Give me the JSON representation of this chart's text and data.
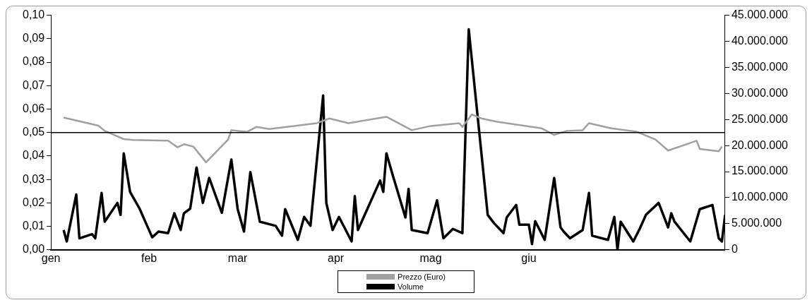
{
  "chart_data": {
    "type": "line",
    "xlim": [
      "--01-01",
      "--08-02"
    ],
    "xticks": [
      {
        "value": "--01-01",
        "label": "gen"
      },
      {
        "value": "--02-01",
        "label": "feb"
      },
      {
        "value": "--03-01",
        "label": "mar"
      },
      {
        "value": "--04-01",
        "label": "apr"
      },
      {
        "value": "--05-01",
        "label": "mag"
      },
      {
        "value": "--06-01",
        "label": "giu"
      }
    ],
    "ylim": [
      0,
      0.1
    ],
    "yticks": [
      {
        "value": 0,
        "label": "0,00"
      },
      {
        "value": 0.01,
        "label": "0,01"
      },
      {
        "value": 0.02,
        "label": "0,02"
      },
      {
        "value": 0.03,
        "label": "0,03"
      },
      {
        "value": 0.04,
        "label": "0,04"
      },
      {
        "value": 0.05,
        "label": "0,05"
      },
      {
        "value": 0.06,
        "label": "0,06"
      },
      {
        "value": 0.07,
        "label": "0,07"
      },
      {
        "value": 0.08,
        "label": "0,08"
      },
      {
        "value": 0.09,
        "label": "0,09"
      },
      {
        "value": 0.1,
        "label": "0,10"
      }
    ],
    "y2lim": [
      0,
      45000000
    ],
    "y2ticks": [
      {
        "value": 0,
        "label": "0"
      },
      {
        "value": 5000000,
        "label": "5.000.000"
      },
      {
        "value": 10000000,
        "label": "10.000.000"
      },
      {
        "value": 15000000,
        "label": "15.000.000"
      },
      {
        "value": 20000000,
        "label": "20.000.000"
      },
      {
        "value": 25000000,
        "label": "25.000.000"
      },
      {
        "value": 30000000,
        "label": "30.000.000"
      },
      {
        "value": 35000000,
        "label": "35.000.000"
      },
      {
        "value": 40000000,
        "label": "40.000.000"
      },
      {
        "value": 45000000,
        "label": "45.000.000"
      }
    ],
    "series": [
      {
        "name": "Prezzo (Euro)",
        "color": "#a0a0a0",
        "x": [
          "--01-05",
          "--01-16",
          "--01-18",
          "--01-24",
          "--01-27",
          "--02-07",
          "--02-10",
          "--02-12",
          "--02-15",
          "--02-19",
          "--02-26",
          "--02-27",
          "--03-04",
          "--03-07",
          "--03-11",
          "--03-26",
          "--03-30",
          "--04-05",
          "--04-17",
          "--04-25",
          "--05-01",
          "--05-10",
          "--05-11",
          "--05-14",
          "--05-17",
          "--05-22",
          "--06-05",
          "--06-09",
          "--06-13",
          "--06-18",
          "--06-20",
          "--06-27",
          "--07-05",
          "--07-11",
          "--07-15",
          "--07-24",
          "--07-25",
          "--07-31",
          "--08-01"
        ],
        "values": [
          0.0564,
          0.0529,
          0.0507,
          0.0472,
          0.0468,
          0.0465,
          0.0437,
          0.045,
          0.044,
          0.0373,
          0.047,
          0.051,
          0.0503,
          0.0524,
          0.0515,
          0.054,
          0.056,
          0.054,
          0.0567,
          0.051,
          0.0528,
          0.054,
          0.0524,
          0.0577,
          0.056,
          0.0546,
          0.0518,
          0.049,
          0.0507,
          0.051,
          0.054,
          0.0518,
          0.0504,
          0.047,
          0.0423,
          0.0465,
          0.043,
          0.042,
          0.044
        ]
      },
      {
        "name": "Volume",
        "color": "#000000",
        "axis": "y2",
        "x": [
          "--01-05",
          "--01-06",
          "--01-09",
          "--01-10",
          "--01-14",
          "--01-15",
          "--01-17",
          "--01-18",
          "--01-22",
          "--01-23",
          "--01-24",
          "--01-26",
          "--01-29",
          "--02-02",
          "--02-04",
          "--02-07",
          "--02-09",
          "--02-11",
          "--02-12",
          "--02-14",
          "--02-16",
          "--02-18",
          "--02-20",
          "--02-24",
          "--02-27",
          "--03-01",
          "--03-03",
          "--03-05",
          "--03-08",
          "--03-13",
          "--03-15",
          "--03-16",
          "--03-20",
          "--03-22",
          "--03-24",
          "--03-28",
          "--03-29",
          "--03-31",
          "--04-02",
          "--04-06",
          "--04-07",
          "--04-08",
          "--04-15",
          "--04-16",
          "--04-17",
          "--04-19",
          "--04-23",
          "--04-24",
          "--04-25",
          "--04-30",
          "--05-03",
          "--05-05",
          "--05-08",
          "--05-11",
          "--05-13",
          "--05-19",
          "--05-21",
          "--05-24",
          "--05-25",
          "--05-28",
          "--05-29",
          "--06-01",
          "--06-02",
          "--06-03",
          "--06-06",
          "--06-09",
          "--06-11",
          "--06-12",
          "--06-14",
          "--06-18",
          "--06-20",
          "--06-21",
          "--06-26",
          "--06-28",
          "--06-29",
          "--06-30",
          "--07-04",
          "--07-06",
          "--07-08",
          "--07-12",
          "--07-15",
          "--07-16",
          "--07-17",
          "--07-22",
          "--07-25",
          "--07-29",
          "--07-31",
          "--08-01",
          "--08-02"
        ],
        "values": [
          3800000,
          1600000,
          10600000,
          2200000,
          3000000,
          2200000,
          10900000,
          5400000,
          9000000,
          6700000,
          18500000,
          11100000,
          7900000,
          2400000,
          3500000,
          3200000,
          7000000,
          3800000,
          7000000,
          7900000,
          15800000,
          9000000,
          13800000,
          7100000,
          17300000,
          7800000,
          3500000,
          14900000,
          5400000,
          4600000,
          2700000,
          7800000,
          1900000,
          6300000,
          4600000,
          29600000,
          9000000,
          3800000,
          6300000,
          1600000,
          10300000,
          3800000,
          13300000,
          11100000,
          18500000,
          14300000,
          6200000,
          11700000,
          3800000,
          3200000,
          9500000,
          2200000,
          4000000,
          3200000,
          42300000,
          6700000,
          5100000,
          3200000,
          6200000,
          8600000,
          4800000,
          4800000,
          1100000,
          5500000,
          1900000,
          13800000,
          4300000,
          3500000,
          2200000,
          3800000,
          10900000,
          2700000,
          1900000,
          6300000,
          0,
          5400000,
          1600000,
          4000000,
          6700000,
          9000000,
          4300000,
          7000000,
          5400000,
          1600000,
          7800000,
          8600000,
          2200000,
          1600000,
          6700000
        ]
      }
    ],
    "ref_lines": [
      {
        "axis": "y",
        "value": 0.05,
        "color": "#000000"
      }
    ],
    "grid": false,
    "legend": "bottom"
  }
}
